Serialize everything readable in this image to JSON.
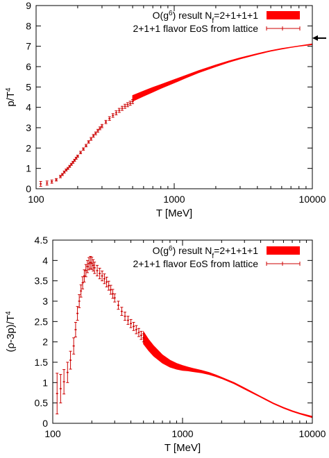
{
  "chart_data": [
    {
      "type": "line",
      "panel": "top",
      "xlabel": "T [MeV]",
      "ylabel": "p/T^4",
      "ylabel_main": "p/T",
      "ylabel_sup": "4",
      "xscale": "log",
      "xlim": [
        100,
        10000
      ],
      "ylim": [
        0,
        9
      ],
      "xticks": [
        100,
        1000,
        10000
      ],
      "xtick_labels": [
        "100",
        "1000",
        "10000"
      ],
      "yticks": [
        0,
        1,
        2,
        3,
        4,
        5,
        6,
        7,
        8,
        9
      ],
      "ytick_labels": [
        "0",
        "1",
        "2",
        "3",
        "4",
        "5",
        "6",
        "7",
        "8",
        "9"
      ],
      "grid": false,
      "legend_position": "top-right",
      "annotations": [
        {
          "type": "arrow",
          "description": "Stefan-Boltzmann limit",
          "y": 7.4
        }
      ],
      "series": [
        {
          "name": "O(g^6) result N_f=2+1+1+1",
          "legend_main": "O(g",
          "legend_sup": "6",
          "legend_mid": ") result N",
          "legend_sub": "f",
          "legend_end": "=2+1+1+1",
          "style": "band",
          "color": "#ff0000",
          "x": [
            500,
            600,
            700,
            800,
            1000,
            1200,
            1500,
            2000,
            2500,
            3000,
            4000,
            5000,
            6000,
            7000,
            8000,
            10000
          ],
          "y_low": [
            4.3,
            4.55,
            4.75,
            4.93,
            5.2,
            5.43,
            5.7,
            6.0,
            6.22,
            6.38,
            6.6,
            6.76,
            6.86,
            6.94,
            7.0,
            7.08
          ],
          "y_high": [
            4.58,
            4.8,
            4.98,
            5.12,
            5.36,
            5.56,
            5.8,
            6.08,
            6.28,
            6.43,
            6.64,
            6.79,
            6.89,
            6.96,
            7.02,
            7.12
          ]
        },
        {
          "name": "2+1+1 flavor EoS from lattice",
          "style": "errorbars",
          "color": "#cc0000",
          "x": [
            108,
            120,
            130,
            140,
            150,
            155,
            160,
            165,
            170,
            175,
            180,
            185,
            190,
            195,
            200,
            210,
            220,
            230,
            240,
            250,
            260,
            270,
            280,
            290,
            300,
            320,
            340,
            360,
            380,
            400,
            420,
            440,
            460,
            480,
            500
          ],
          "y": [
            0.24,
            0.28,
            0.35,
            0.44,
            0.6,
            0.7,
            0.82,
            0.92,
            1.0,
            1.1,
            1.2,
            1.3,
            1.4,
            1.5,
            1.6,
            1.78,
            1.95,
            2.12,
            2.3,
            2.45,
            2.6,
            2.72,
            2.85,
            2.97,
            3.08,
            3.28,
            3.45,
            3.6,
            3.73,
            3.85,
            3.95,
            4.05,
            4.13,
            4.2,
            4.28
          ],
          "yerr": [
            0.12,
            0.1,
            0.08,
            0.06,
            0.06,
            0.05,
            0.05,
            0.05,
            0.05,
            0.05,
            0.05,
            0.05,
            0.05,
            0.05,
            0.05,
            0.06,
            0.06,
            0.06,
            0.06,
            0.07,
            0.07,
            0.07,
            0.07,
            0.07,
            0.08,
            0.08,
            0.09,
            0.09,
            0.1,
            0.1,
            0.1,
            0.1,
            0.1,
            0.1,
            0.1
          ]
        }
      ]
    },
    {
      "type": "line",
      "panel": "bottom",
      "xlabel": "T [MeV]",
      "ylabel": "(ρ-3p)/T^4",
      "ylabel_main": "(ρ-3p)/T",
      "ylabel_sup": "4",
      "xscale": "log",
      "xlim": [
        100,
        10000
      ],
      "ylim": [
        0,
        4.5
      ],
      "xticks": [
        100,
        1000,
        10000
      ],
      "xtick_labels": [
        "100",
        "1000",
        "10000"
      ],
      "yticks": [
        0,
        0.5,
        1,
        1.5,
        2,
        2.5,
        3,
        3.5,
        4,
        4.5
      ],
      "ytick_labels": [
        "0",
        "0.5",
        "1",
        "1.5",
        "2",
        "2.5",
        "3",
        "3.5",
        "4",
        "4.5"
      ],
      "grid": false,
      "legend_position": "top-right",
      "series": [
        {
          "name": "O(g^6) result N_f=2+1+1+1",
          "legend_main": "O(g",
          "legend_sup": "6",
          "legend_mid": ") result N",
          "legend_sub": "f",
          "legend_end": "=2+1+1+1",
          "style": "band",
          "color": "#ff0000",
          "x": [
            500,
            550,
            600,
            700,
            800,
            900,
            1000,
            1100,
            1200,
            1400,
            1600,
            1800,
            2000,
            2500,
            3000,
            4000,
            5000,
            6000,
            7000,
            8000,
            10000
          ],
          "y_low": [
            1.95,
            1.78,
            1.65,
            1.48,
            1.38,
            1.33,
            1.3,
            1.29,
            1.27,
            1.24,
            1.2,
            1.15,
            1.1,
            0.97,
            0.84,
            0.64,
            0.48,
            0.37,
            0.29,
            0.23,
            0.14
          ],
          "y_high": [
            2.25,
            2.05,
            1.9,
            1.68,
            1.55,
            1.47,
            1.42,
            1.38,
            1.35,
            1.3,
            1.25,
            1.19,
            1.13,
            1.0,
            0.87,
            0.66,
            0.5,
            0.39,
            0.31,
            0.25,
            0.17
          ]
        },
        {
          "name": "2+1+1 flavor EoS from lattice",
          "style": "errorbars",
          "color": "#cc0000",
          "x": [
            108,
            115,
            122,
            130,
            137,
            145,
            150,
            155,
            160,
            165,
            170,
            175,
            180,
            185,
            190,
            195,
            200,
            205,
            210,
            220,
            230,
            240,
            250,
            260,
            270,
            280,
            290,
            300,
            320,
            340,
            360,
            380,
            400,
            420,
            440,
            460,
            480,
            500
          ],
          "y": [
            0.73,
            0.85,
            1.02,
            1.25,
            1.55,
            1.9,
            2.3,
            2.7,
            3.0,
            3.25,
            3.45,
            3.62,
            3.75,
            3.85,
            3.92,
            3.95,
            3.93,
            3.88,
            3.82,
            3.75,
            3.68,
            3.62,
            3.55,
            3.47,
            3.38,
            3.28,
            3.18,
            3.08,
            2.9,
            2.75,
            2.63,
            2.53,
            2.45,
            2.38,
            2.3,
            2.23,
            2.16,
            2.1
          ],
          "yerr": [
            0.5,
            0.35,
            0.3,
            0.25,
            0.22,
            0.2,
            0.18,
            0.17,
            0.16,
            0.15,
            0.15,
            0.15,
            0.15,
            0.15,
            0.15,
            0.15,
            0.15,
            0.14,
            0.14,
            0.13,
            0.13,
            0.12,
            0.12,
            0.12,
            0.11,
            0.11,
            0.11,
            0.1,
            0.1,
            0.1,
            0.1,
            0.1,
            0.1,
            0.1,
            0.1,
            0.1,
            0.1,
            0.1
          ]
        }
      ]
    }
  ]
}
